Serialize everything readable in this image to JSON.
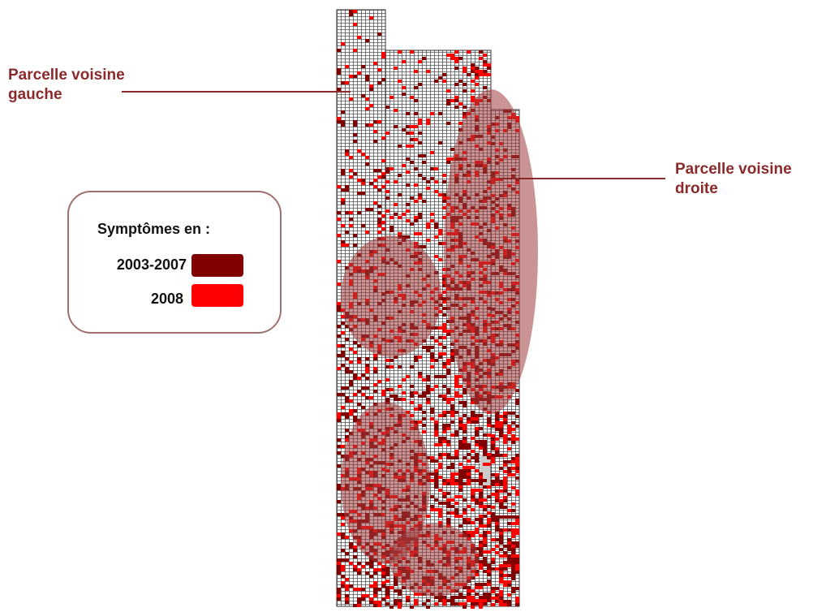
{
  "map": {
    "labels": {
      "left": [
        "Parcelle voisine",
        "gauche"
      ],
      "right": [
        "Parcelle voisine",
        "droite"
      ]
    },
    "legend": {
      "title": "Symptômes en :",
      "items": [
        {
          "label": "2003-2007",
          "color": "#800000"
        },
        {
          "label": "2008",
          "color": "#ff0000"
        }
      ]
    }
  }
}
